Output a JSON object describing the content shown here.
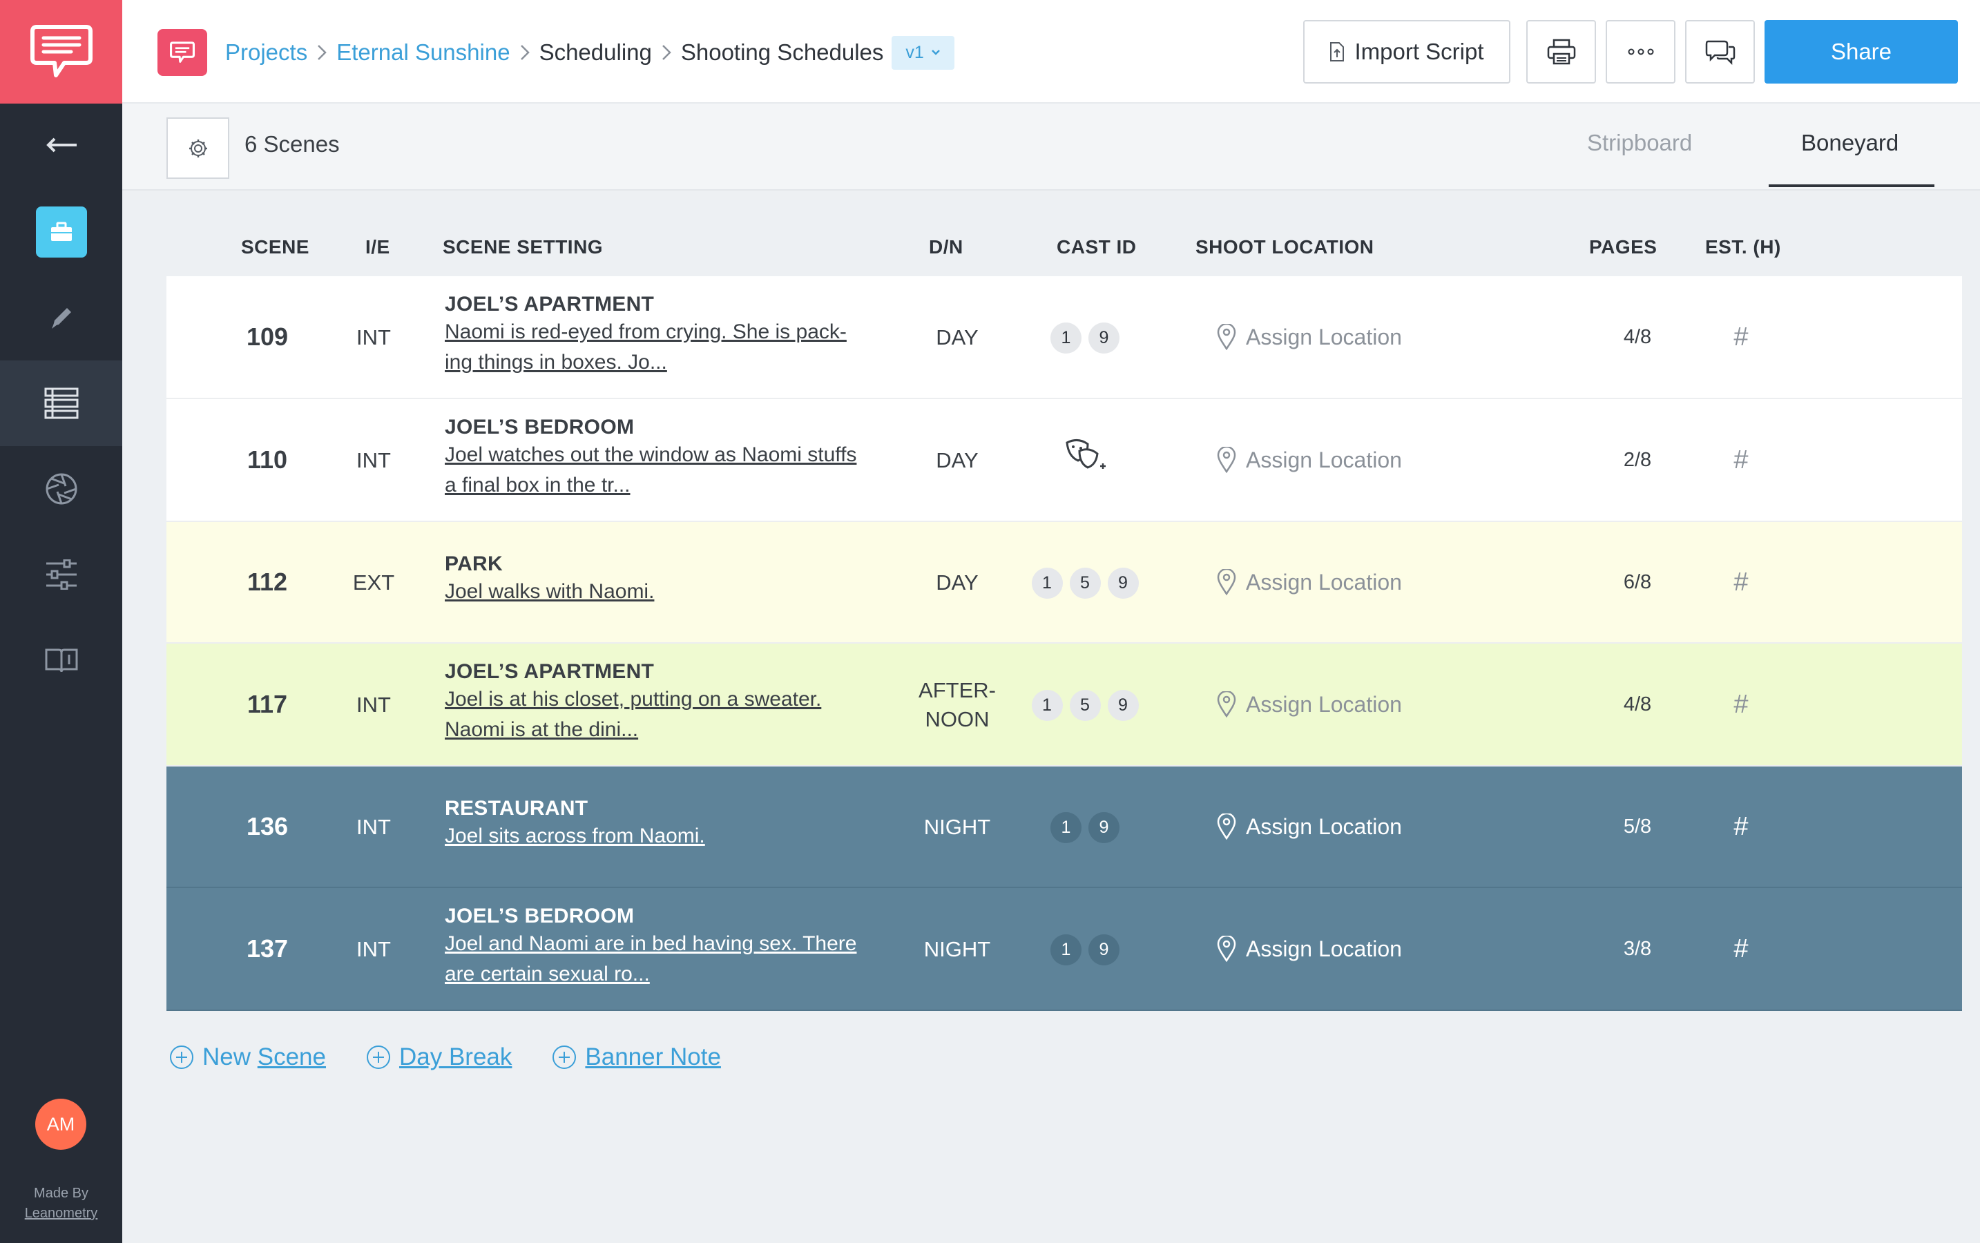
{
  "app": {
    "brand_color": "#f05567",
    "accent_color": "#2c9bea"
  },
  "sidebar": {
    "items": [
      {
        "name": "back",
        "icon": "arrow-left-icon"
      },
      {
        "name": "projects",
        "icon": "briefcase-icon"
      },
      {
        "name": "write",
        "icon": "pencil-icon"
      },
      {
        "name": "scheduling",
        "icon": "list-icon"
      },
      {
        "name": "shot-list",
        "icon": "aperture-icon"
      },
      {
        "name": "settings",
        "icon": "sliders-icon"
      },
      {
        "name": "learn",
        "icon": "book-icon"
      }
    ],
    "avatar_initials": "AM",
    "made_by": "Made By",
    "made_by_brand": "Leanometry"
  },
  "header": {
    "breadcrumb": [
      "Projects",
      "Eternal Sunshine",
      "Scheduling",
      "Shooting Schedules"
    ],
    "version": "v1",
    "import_label": "Import Script",
    "share_label": "Share"
  },
  "subbar": {
    "scene_count": "6 Scenes",
    "tabs": [
      "Stripboard",
      "Boneyard"
    ],
    "active_tab": "Boneyard"
  },
  "table": {
    "columns": [
      "SCENE",
      "I/E",
      "SCENE SETTING",
      "D/N",
      "CAST ID",
      "SHOOT LOCATION",
      "PAGES",
      "EST. (H)"
    ],
    "rows": [
      {
        "scene": "109",
        "ie": "INT",
        "title": "JOEL’S APARTMENT",
        "desc": [
          "Naomi is red-eyed from crying. She is pack-",
          "ing things in boxes. Jo..."
        ],
        "dn": [
          "DAY"
        ],
        "cast": [
          "1",
          "9"
        ],
        "location": "Assign Location",
        "pages": "4/8",
        "est": "#",
        "color": "white"
      },
      {
        "scene": "110",
        "ie": "INT",
        "title": "JOEL’S BEDROOM",
        "desc": [
          "Joel watches out the window as Naomi stuffs",
          "a final box in the tr..."
        ],
        "dn": [
          "DAY"
        ],
        "cast": [],
        "location": "Assign Location",
        "pages": "2/8",
        "est": "#",
        "color": "white"
      },
      {
        "scene": "112",
        "ie": "EXT",
        "title": "PARK",
        "desc": [
          "Joel walks with Naomi."
        ],
        "dn": [
          "DAY"
        ],
        "cast": [
          "1",
          "5",
          "9"
        ],
        "location": "Assign Location",
        "pages": "6/8",
        "est": "#",
        "color": "cream"
      },
      {
        "scene": "117",
        "ie": "INT",
        "title": "JOEL’S APARTMENT",
        "desc": [
          "Joel is at his closet, putting on a sweater.",
          "Naomi is at the dini..."
        ],
        "dn": [
          "AFTER-",
          "NOON"
        ],
        "cast": [
          "1",
          "5",
          "9"
        ],
        "location": "Assign Location",
        "pages": "4/8",
        "est": "#",
        "color": "lime"
      },
      {
        "scene": "136",
        "ie": "INT",
        "title": "RESTAURANT",
        "desc": [
          "Joel sits across from Naomi."
        ],
        "dn": [
          "NIGHT"
        ],
        "cast": [
          "1",
          "9"
        ],
        "location": "Assign Location",
        "pages": "5/8",
        "est": "#",
        "color": "slate"
      },
      {
        "scene": "137",
        "ie": "INT",
        "title": "JOEL’S BEDROOM",
        "desc": [
          "Joel and Naomi are in bed having sex. There",
          "are certain sexual ro..."
        ],
        "dn": [
          "NIGHT"
        ],
        "cast": [
          "1",
          "9"
        ],
        "location": "Assign Location",
        "pages": "3/8",
        "est": "#",
        "color": "slate"
      }
    ]
  },
  "actions": {
    "new_scene_prefix": "New ",
    "new_scene_underlined": "Scene",
    "day_break": "Day Break",
    "banner_note": "Banner Note"
  }
}
